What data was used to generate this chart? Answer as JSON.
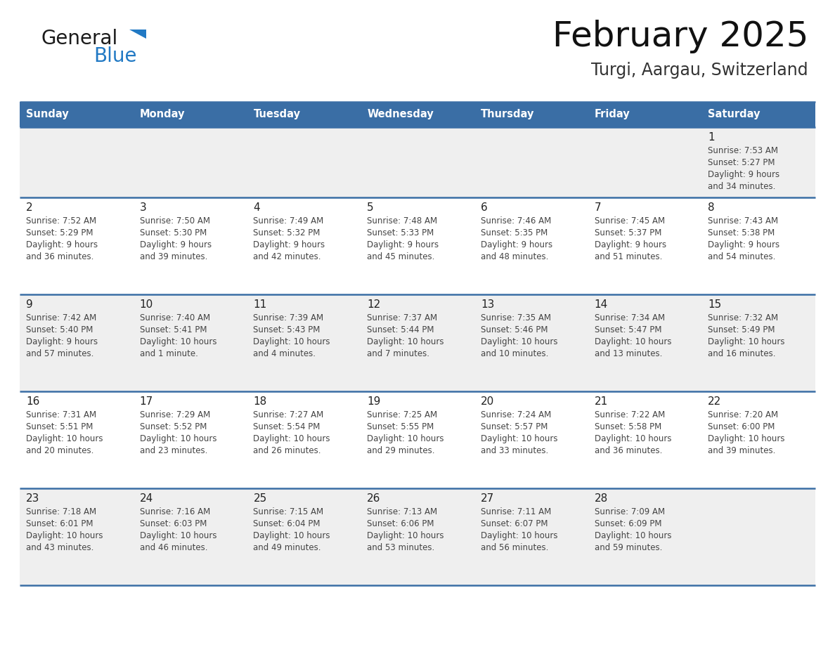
{
  "title": "February 2025",
  "subtitle": "Turgi, Aargau, Switzerland",
  "days_of_week": [
    "Sunday",
    "Monday",
    "Tuesday",
    "Wednesday",
    "Thursday",
    "Friday",
    "Saturday"
  ],
  "header_bg": "#3a6ea5",
  "header_text": "#ffffff",
  "row0_bg": "#f0f0f0",
  "row1_bg": "#ffffff",
  "row2_bg": "#f0f0f0",
  "row3_bg": "#ffffff",
  "row4_bg": "#f0f0f0",
  "border_color": "#3a6ea5",
  "day_number_color": "#222222",
  "text_color": "#444444",
  "logo_general_color": "#1a1a1a",
  "logo_blue_color": "#2179c4",
  "logo_triangle_color": "#2179c4",
  "calendar_data": [
    [
      null,
      null,
      null,
      null,
      null,
      null,
      {
        "day": 1,
        "sunrise": "7:53 AM",
        "sunset": "5:27 PM",
        "daylight": "9 hours\nand 34 minutes."
      }
    ],
    [
      {
        "day": 2,
        "sunrise": "7:52 AM",
        "sunset": "5:29 PM",
        "daylight": "9 hours\nand 36 minutes."
      },
      {
        "day": 3,
        "sunrise": "7:50 AM",
        "sunset": "5:30 PM",
        "daylight": "9 hours\nand 39 minutes."
      },
      {
        "day": 4,
        "sunrise": "7:49 AM",
        "sunset": "5:32 PM",
        "daylight": "9 hours\nand 42 minutes."
      },
      {
        "day": 5,
        "sunrise": "7:48 AM",
        "sunset": "5:33 PM",
        "daylight": "9 hours\nand 45 minutes."
      },
      {
        "day": 6,
        "sunrise": "7:46 AM",
        "sunset": "5:35 PM",
        "daylight": "9 hours\nand 48 minutes."
      },
      {
        "day": 7,
        "sunrise": "7:45 AM",
        "sunset": "5:37 PM",
        "daylight": "9 hours\nand 51 minutes."
      },
      {
        "day": 8,
        "sunrise": "7:43 AM",
        "sunset": "5:38 PM",
        "daylight": "9 hours\nand 54 minutes."
      }
    ],
    [
      {
        "day": 9,
        "sunrise": "7:42 AM",
        "sunset": "5:40 PM",
        "daylight": "9 hours\nand 57 minutes."
      },
      {
        "day": 10,
        "sunrise": "7:40 AM",
        "sunset": "5:41 PM",
        "daylight": "10 hours\nand 1 minute."
      },
      {
        "day": 11,
        "sunrise": "7:39 AM",
        "sunset": "5:43 PM",
        "daylight": "10 hours\nand 4 minutes."
      },
      {
        "day": 12,
        "sunrise": "7:37 AM",
        "sunset": "5:44 PM",
        "daylight": "10 hours\nand 7 minutes."
      },
      {
        "day": 13,
        "sunrise": "7:35 AM",
        "sunset": "5:46 PM",
        "daylight": "10 hours\nand 10 minutes."
      },
      {
        "day": 14,
        "sunrise": "7:34 AM",
        "sunset": "5:47 PM",
        "daylight": "10 hours\nand 13 minutes."
      },
      {
        "day": 15,
        "sunrise": "7:32 AM",
        "sunset": "5:49 PM",
        "daylight": "10 hours\nand 16 minutes."
      }
    ],
    [
      {
        "day": 16,
        "sunrise": "7:31 AM",
        "sunset": "5:51 PM",
        "daylight": "10 hours\nand 20 minutes."
      },
      {
        "day": 17,
        "sunrise": "7:29 AM",
        "sunset": "5:52 PM",
        "daylight": "10 hours\nand 23 minutes."
      },
      {
        "day": 18,
        "sunrise": "7:27 AM",
        "sunset": "5:54 PM",
        "daylight": "10 hours\nand 26 minutes."
      },
      {
        "day": 19,
        "sunrise": "7:25 AM",
        "sunset": "5:55 PM",
        "daylight": "10 hours\nand 29 minutes."
      },
      {
        "day": 20,
        "sunrise": "7:24 AM",
        "sunset": "5:57 PM",
        "daylight": "10 hours\nand 33 minutes."
      },
      {
        "day": 21,
        "sunrise": "7:22 AM",
        "sunset": "5:58 PM",
        "daylight": "10 hours\nand 36 minutes."
      },
      {
        "day": 22,
        "sunrise": "7:20 AM",
        "sunset": "6:00 PM",
        "daylight": "10 hours\nand 39 minutes."
      }
    ],
    [
      {
        "day": 23,
        "sunrise": "7:18 AM",
        "sunset": "6:01 PM",
        "daylight": "10 hours\nand 43 minutes."
      },
      {
        "day": 24,
        "sunrise": "7:16 AM",
        "sunset": "6:03 PM",
        "daylight": "10 hours\nand 46 minutes."
      },
      {
        "day": 25,
        "sunrise": "7:15 AM",
        "sunset": "6:04 PM",
        "daylight": "10 hours\nand 49 minutes."
      },
      {
        "day": 26,
        "sunrise": "7:13 AM",
        "sunset": "6:06 PM",
        "daylight": "10 hours\nand 53 minutes."
      },
      {
        "day": 27,
        "sunrise": "7:11 AM",
        "sunset": "6:07 PM",
        "daylight": "10 hours\nand 56 minutes."
      },
      {
        "day": 28,
        "sunrise": "7:09 AM",
        "sunset": "6:09 PM",
        "daylight": "10 hours\nand 59 minutes."
      },
      null
    ]
  ],
  "row_bgs": [
    "#efefef",
    "#ffffff",
    "#efefef",
    "#ffffff",
    "#efefef"
  ],
  "fig_width": 11.88,
  "fig_height": 9.18,
  "dpi": 100
}
